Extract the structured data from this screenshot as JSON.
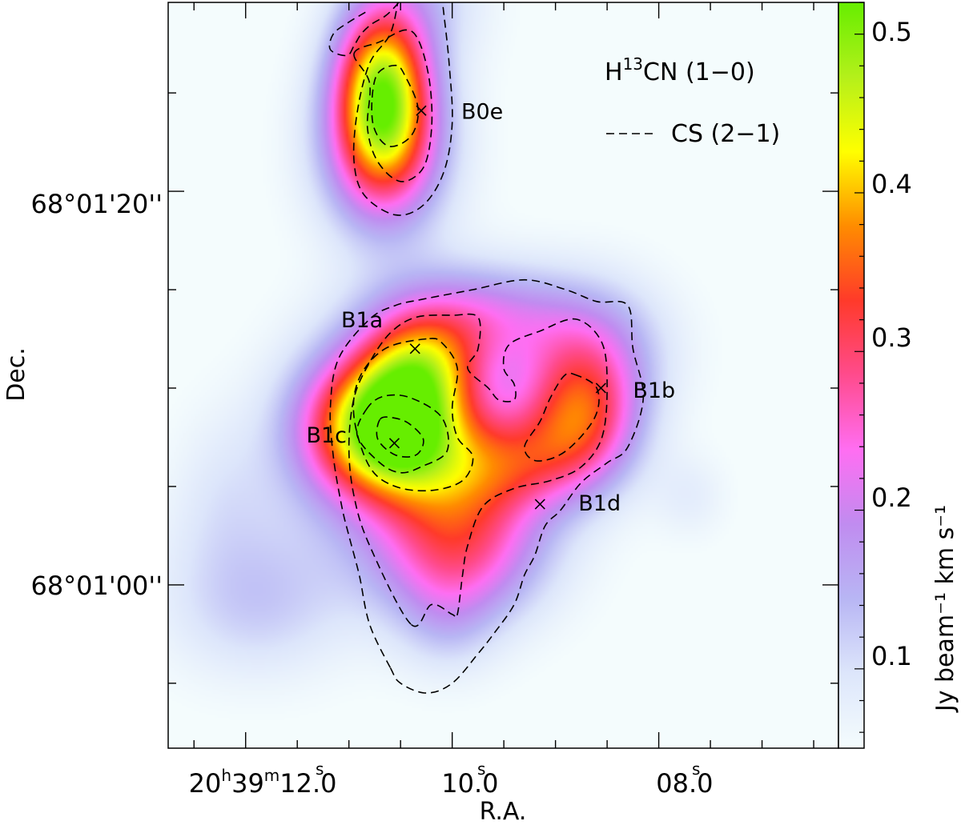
{
  "chart_data": {
    "type": "heatmap",
    "title": "",
    "xlabel": "R.A.",
    "ylabel": "Dec.",
    "colorbar_label": "Jy beam⁻¹ km s⁻¹",
    "colorbar_range": [
      0.05,
      0.52
    ],
    "colorbar_ticks": [
      "0.1",
      "0.2",
      "0.3",
      "0.4",
      "0.5"
    ],
    "colorbar_tick_values": [
      0.1,
      0.2,
      0.3,
      0.4,
      0.5
    ],
    "colormap": [
      "#f4fcfd",
      "#dde6fb",
      "#b8b6f4",
      "#c08cf0",
      "#ff6ef2",
      "#ff4b8d",
      "#ff3a2a",
      "#ff8c00",
      "#ffff00",
      "#b4f01a",
      "#66ee00"
    ],
    "x_ticks": [
      {
        "h": "20",
        "m": "39",
        "s": "12",
        "frac": ".0",
        "value_s": 12.0
      },
      {
        "h": "",
        "m": "",
        "s": "10",
        "frac": ".0",
        "value_s": 10.0
      },
      {
        "h": "",
        "m": "",
        "s": "08",
        "frac": ".0",
        "value_s": 8.0
      }
    ],
    "y_ticks": [
      {
        "label": "68°01'20''",
        "value_arcsec": 20
      },
      {
        "label": "68°01'00''",
        "value_arcsec": 0
      }
    ],
    "x_range_s": [
      12.75,
      6.26
    ],
    "y_range_arcsec": [
      -8.3,
      29.6
    ],
    "legend": {
      "heatmap_label_prefix": "H",
      "heatmap_label_sup": "13",
      "heatmap_label_suffix": "CN (1−0)",
      "contour_label": "CS (2−1)"
    },
    "sources": [
      {
        "name": "B0e",
        "ra_s": 10.3,
        "dec_arcsec": 24.1
      },
      {
        "name": "B1a",
        "ra_s": 10.36,
        "dec_arcsec": 12.0
      },
      {
        "name": "B1b",
        "ra_s": 8.56,
        "dec_arcsec": 10.0
      },
      {
        "name": "B1c",
        "ra_s": 10.56,
        "dec_arcsec": 7.2
      },
      {
        "name": "B1d",
        "ra_s": 9.15,
        "dec_arcsec": 4.1
      }
    ],
    "intensity_blobs": [
      {
        "ra_s": 10.68,
        "dec_arcsec": 25.2,
        "peak": 0.37,
        "sx": 0.32,
        "sy": 3.2
      },
      {
        "ra_s": 10.65,
        "dec_arcsec": 22.0,
        "peak": 0.18,
        "sx": 0.45,
        "sy": 3.2
      },
      {
        "ra_s": 10.62,
        "dec_arcsec": 8.0,
        "peak": 0.44,
        "sx": 0.48,
        "sy": 2.5
      },
      {
        "ra_s": 10.3,
        "dec_arcsec": 11.0,
        "peak": 0.2,
        "sx": 0.4,
        "sy": 2.0
      },
      {
        "ra_s": 9.95,
        "dec_arcsec": 5.0,
        "peak": 0.17,
        "sx": 0.6,
        "sy": 3.5
      },
      {
        "ra_s": 9.95,
        "dec_arcsec": 1.5,
        "peak": 0.14,
        "sx": 0.6,
        "sy": 2.5
      },
      {
        "ra_s": 8.75,
        "dec_arcsec": 8.5,
        "peak": 0.25,
        "sx": 0.4,
        "sy": 2.5
      },
      {
        "ra_s": 9.4,
        "dec_arcsec": 6.2,
        "peak": 0.13,
        "sx": 0.5,
        "sy": 1.8
      },
      {
        "ra_s": 9.8,
        "dec_arcsec": 13.5,
        "peak": 0.16,
        "sx": 0.7,
        "sy": 2.0
      },
      {
        "ra_s": 8.6,
        "dec_arcsec": 12.0,
        "peak": 0.1,
        "sx": 0.5,
        "sy": 2.5
      },
      {
        "ra_s": 11.2,
        "dec_arcsec": 8.0,
        "peak": 0.08,
        "sx": 0.45,
        "sy": 3.0
      },
      {
        "ra_s": 10.05,
        "dec_arcsec": -2.0,
        "peak": 0.05,
        "sx": 0.35,
        "sy": 2.0
      },
      {
        "ra_s": 12.2,
        "dec_arcsec": 5.0,
        "peak": 0.035,
        "sx": 0.35,
        "sy": 3.0
      },
      {
        "ra_s": 11.9,
        "dec_arcsec": -1.5,
        "peak": 0.05,
        "sx": 0.6,
        "sy": 2.5
      },
      {
        "ra_s": 11.8,
        "dec_arcsec": 1.0,
        "peak": 0.04,
        "sx": 0.8,
        "sy": 3.0
      },
      {
        "ra_s": 7.7,
        "dec_arcsec": 4.5,
        "peak": 0.035,
        "sx": 0.25,
        "sy": 1.5
      },
      {
        "ra_s": 10.2,
        "dec_arcsec": 30.0,
        "peak": 0.06,
        "sx": 0.4,
        "sy": 2.5
      }
    ],
    "cs_contours": [
      {
        "level": 1,
        "points": [
          [
            10.52,
            29.8
          ],
          [
            10.6,
            28.0
          ],
          [
            10.8,
            26.5
          ],
          [
            10.92,
            24.0
          ],
          [
            10.95,
            21.5
          ],
          [
            10.85,
            19.8
          ],
          [
            10.55,
            18.8
          ],
          [
            10.28,
            19.3
          ],
          [
            10.08,
            21.0
          ],
          [
            10.0,
            23.5
          ],
          [
            10.03,
            26.5
          ],
          [
            10.08,
            29.0
          ],
          [
            10.1,
            29.8
          ]
        ]
      },
      {
        "level": 1,
        "points": [
          [
            10.84,
            29.1
          ],
          [
            11.0,
            28.6
          ],
          [
            11.15,
            28.0
          ],
          [
            11.18,
            27.2
          ],
          [
            11.02,
            26.9
          ],
          [
            10.95,
            27.4
          ],
          [
            10.88,
            28.0
          ],
          [
            10.78,
            28.5
          ],
          [
            10.65,
            28.9
          ],
          [
            10.55,
            29.4
          ],
          [
            10.49,
            29.8
          ]
        ]
      },
      {
        "level": 2,
        "points": [
          [
            10.95,
            27.0
          ],
          [
            10.8,
            25.5
          ],
          [
            10.82,
            23.2
          ],
          [
            10.72,
            21.5
          ],
          [
            10.5,
            20.5
          ],
          [
            10.28,
            21.2
          ],
          [
            10.2,
            23.2
          ],
          [
            10.22,
            25.6
          ],
          [
            10.32,
            27.6
          ],
          [
            10.45,
            28.2
          ],
          [
            10.7,
            27.6
          ],
          [
            10.95,
            27.0
          ]
        ]
      },
      {
        "level": 3,
        "points": [
          [
            10.74,
            25.8
          ],
          [
            10.77,
            23.5
          ],
          [
            10.62,
            22.3
          ],
          [
            10.4,
            22.8
          ],
          [
            10.33,
            24.2
          ],
          [
            10.45,
            25.8
          ],
          [
            10.55,
            26.4
          ],
          [
            10.74,
            25.8
          ]
        ]
      },
      {
        "level": 1,
        "points": [
          [
            10.6,
            -4.2
          ],
          [
            10.8,
            -2.0
          ],
          [
            10.9,
            0.5
          ],
          [
            11.0,
            2.5
          ],
          [
            11.07,
            4.0
          ],
          [
            11.15,
            6.5
          ],
          [
            11.18,
            9.0
          ],
          [
            11.1,
            11.5
          ],
          [
            10.8,
            13.5
          ],
          [
            10.55,
            14.2
          ],
          [
            10.3,
            14.5
          ],
          [
            9.8,
            15.0
          ],
          [
            9.3,
            15.5
          ],
          [
            8.9,
            15.0
          ],
          [
            8.6,
            14.4
          ],
          [
            8.3,
            14.2
          ],
          [
            8.25,
            12.0
          ],
          [
            8.15,
            9.5
          ],
          [
            8.3,
            7.0
          ],
          [
            8.5,
            6.2
          ],
          [
            8.75,
            5.2
          ],
          [
            8.95,
            3.8
          ],
          [
            9.1,
            3.0
          ],
          [
            9.2,
            1.5
          ],
          [
            9.3,
            0.5
          ],
          [
            9.4,
            -1.0
          ],
          [
            9.6,
            -2.5
          ],
          [
            9.75,
            -3.5
          ],
          [
            10.0,
            -5.0
          ],
          [
            10.25,
            -5.5
          ],
          [
            10.5,
            -5.0
          ],
          [
            10.6,
            -4.2
          ]
        ]
      },
      {
        "level": 2,
        "points": [
          [
            10.4,
            -2.0
          ],
          [
            10.8,
            2.0
          ],
          [
            10.95,
            4.5
          ],
          [
            11.0,
            7.0
          ],
          [
            10.95,
            9.5
          ],
          [
            10.8,
            11.3
          ],
          [
            10.6,
            12.8
          ],
          [
            10.35,
            13.6
          ],
          [
            10.0,
            13.7
          ],
          [
            9.75,
            13.6
          ],
          [
            9.75,
            12.0
          ],
          [
            9.85,
            11.0
          ],
          [
            9.65,
            10.0
          ],
          [
            9.55,
            9.4
          ],
          [
            9.4,
            9.4
          ],
          [
            9.4,
            10.2
          ],
          [
            9.5,
            11.0
          ],
          [
            9.45,
            12.2
          ],
          [
            9.15,
            12.9
          ],
          [
            8.8,
            13.5
          ],
          [
            8.55,
            12.3
          ],
          [
            8.5,
            10.0
          ],
          [
            8.55,
            7.5
          ],
          [
            8.75,
            6.0
          ],
          [
            9.05,
            5.3
          ],
          [
            9.4,
            4.9
          ],
          [
            9.7,
            4.0
          ],
          [
            9.85,
            2.0
          ],
          [
            9.9,
            0.5
          ],
          [
            9.95,
            -1.5
          ],
          [
            10.0,
            -1.5
          ],
          [
            10.2,
            -1.0
          ],
          [
            10.4,
            -2.0
          ]
        ]
      },
      {
        "level": 3,
        "points": [
          [
            10.25,
            12.5
          ],
          [
            10.65,
            12.0
          ],
          [
            10.9,
            10.5
          ],
          [
            10.95,
            8.5
          ],
          [
            10.8,
            6.0
          ],
          [
            10.55,
            5.0
          ],
          [
            10.2,
            4.8
          ],
          [
            9.9,
            5.3
          ],
          [
            9.8,
            6.5
          ],
          [
            9.95,
            7.5
          ],
          [
            10.0,
            9.0
          ],
          [
            9.95,
            11.0
          ],
          [
            10.1,
            12.3
          ],
          [
            10.25,
            12.5
          ]
        ]
      },
      {
        "level": 4,
        "points": [
          [
            10.82,
            9.0
          ],
          [
            10.92,
            7.6
          ],
          [
            10.7,
            6.2
          ],
          [
            10.5,
            5.7
          ],
          [
            10.3,
            6.0
          ],
          [
            10.05,
            6.8
          ],
          [
            10.1,
            8.5
          ],
          [
            10.4,
            9.5
          ],
          [
            10.65,
            9.6
          ],
          [
            10.82,
            9.0
          ]
        ]
      },
      {
        "level": 5,
        "points": [
          [
            10.7,
            8.4
          ],
          [
            10.72,
            7.4
          ],
          [
            10.55,
            6.6
          ],
          [
            10.35,
            6.6
          ],
          [
            10.28,
            7.4
          ],
          [
            10.42,
            8.2
          ],
          [
            10.58,
            8.5
          ],
          [
            10.7,
            8.4
          ]
        ]
      },
      {
        "level": 3,
        "points": [
          [
            8.82,
            10.7
          ],
          [
            8.6,
            10.0
          ],
          [
            8.62,
            8.5
          ],
          [
            8.9,
            6.8
          ],
          [
            9.18,
            6.3
          ],
          [
            9.3,
            7.0
          ],
          [
            9.15,
            8.3
          ],
          [
            9.05,
            9.5
          ],
          [
            8.92,
            10.6
          ],
          [
            8.82,
            10.7
          ]
        ]
      }
    ]
  }
}
